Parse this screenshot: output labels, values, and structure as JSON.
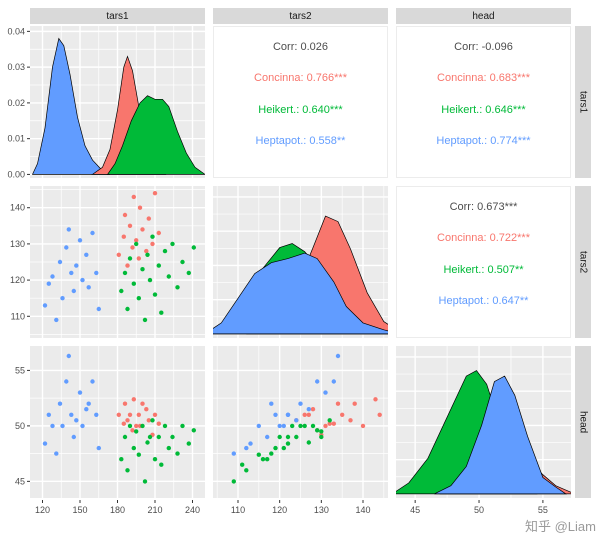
{
  "watermark": "知乎 @Liam",
  "strips": {
    "top": [
      "tars1",
      "tars2",
      "head"
    ],
    "right": [
      "tars1",
      "tars2",
      "head"
    ]
  },
  "colors": {
    "panel_bg": "#EBEBEB",
    "grid": "#FFFFFF",
    "strip_bg": "#D9D9D9",
    "tick_text": "#4D4D4D",
    "tick_mark": "#333333",
    "outline": "#000000"
  },
  "chart_data": {
    "type": "scatterplot-matrix",
    "title": "",
    "variables": [
      "tars1",
      "tars2",
      "head"
    ],
    "species": [
      {
        "name": "Concinna",
        "color": "#F8766D"
      },
      {
        "name": "Heikert.",
        "color": "#00BA38"
      },
      {
        "name": "Heptapot.",
        "color": "#619CFF"
      }
    ],
    "axes": {
      "tars1": {
        "lim": [
          110,
          250
        ],
        "major": [
          120,
          150,
          180,
          210,
          240
        ],
        "labels": [
          "120",
          "150",
          "180",
          "210",
          "240"
        ],
        "minor": [
          135,
          165,
          195,
          225
        ]
      },
      "tars2": {
        "lim": [
          104,
          146
        ],
        "major": [
          110,
          120,
          130,
          140
        ],
        "labels": [
          "110",
          "120",
          "130",
          "140"
        ],
        "minor": [
          105,
          115,
          125,
          135,
          145
        ]
      },
      "head": {
        "lim": [
          43.5,
          57.2
        ],
        "major": [
          45,
          50,
          55
        ],
        "labels": [
          "45",
          "50",
          "55"
        ],
        "minor": [
          47.5,
          52.5
        ]
      },
      "density": {
        "lim": [
          -0.001,
          0.0415
        ],
        "major": [
          0,
          0.01,
          0.02,
          0.03,
          0.04
        ],
        "labels": [
          "0.00",
          "0.01",
          "0.02",
          "0.03",
          "0.04"
        ],
        "minor": [
          0.005,
          0.015,
          0.025,
          0.035
        ]
      },
      "norm": {
        "lim": [
          -0.03,
          1.08
        ],
        "major": [
          0,
          0.25,
          0.5,
          0.75,
          1
        ],
        "labels": [],
        "minor": [
          0.125,
          0.375,
          0.625,
          0.875
        ]
      }
    },
    "corr": {
      "r1c2": [
        {
          "text": "Corr: 0.026",
          "color": "#4D4D4D"
        },
        {
          "text": "Concinna: 0.766***",
          "color": "#F8766D"
        },
        {
          "text": "Heikert.: 0.640***",
          "color": "#00BA38"
        },
        {
          "text": "Heptapot.: 0.558**",
          "color": "#619CFF"
        }
      ],
      "r1c3": [
        {
          "text": "Corr: -0.096",
          "color": "#4D4D4D"
        },
        {
          "text": "Concinna: 0.683***",
          "color": "#F8766D"
        },
        {
          "text": "Heikert.: 0.646***",
          "color": "#00BA38"
        },
        {
          "text": "Heptapot.: 0.774***",
          "color": "#619CFF"
        }
      ],
      "r2c3": [
        {
          "text": "Corr: 0.673***",
          "color": "#4D4D4D"
        },
        {
          "text": "Concinna: 0.722***",
          "color": "#F8766D"
        },
        {
          "text": "Heikert.: 0.507**",
          "color": "#00BA38"
        },
        {
          "text": "Heptapot.: 0.647**",
          "color": "#619CFF"
        }
      ]
    },
    "points": {
      "Concinna": [
        [
          181,
          127,
          51
        ],
        [
          185,
          132,
          50.2
        ],
        [
          186,
          138,
          52
        ],
        [
          188,
          124,
          50.5
        ],
        [
          190,
          135,
          51
        ],
        [
          192,
          129,
          49.6
        ],
        [
          193,
          143,
          52.4
        ],
        [
          195,
          131,
          50
        ],
        [
          197,
          126,
          51
        ],
        [
          198,
          140,
          50
        ],
        [
          200,
          134,
          52
        ],
        [
          203,
          128,
          51.5
        ],
        [
          205,
          137,
          50.5
        ],
        [
          208,
          130,
          49.2
        ],
        [
          210,
          144,
          51
        ],
        [
          213,
          133,
          50.2
        ]
      ],
      "Heikert.": [
        [
          183,
          117,
          47
        ],
        [
          186,
          122,
          49
        ],
        [
          188,
          112,
          46
        ],
        [
          190,
          126,
          50
        ],
        [
          193,
          119,
          48
        ],
        [
          195,
          130,
          49.5
        ],
        [
          197,
          115,
          47.4
        ],
        [
          200,
          123,
          50
        ],
        [
          202,
          109,
          45
        ],
        [
          204,
          127,
          48.5
        ],
        [
          206,
          120,
          49
        ],
        [
          208,
          132,
          50.5
        ],
        [
          210,
          116,
          47
        ],
        [
          213,
          124,
          49
        ],
        [
          215,
          111,
          46.5
        ],
        [
          218,
          128,
          50
        ],
        [
          221,
          121,
          48
        ],
        [
          224,
          130,
          49
        ],
        [
          228,
          118,
          47.5
        ],
        [
          232,
          125,
          50
        ],
        [
          237,
          122,
          48.4
        ],
        [
          241,
          129,
          49.6
        ]
      ],
      "Heptapot.": [
        [
          122,
          113,
          48.4
        ],
        [
          125,
          119,
          51
        ],
        [
          128,
          121,
          50
        ],
        [
          131,
          109,
          47.5
        ],
        [
          134,
          125,
          52
        ],
        [
          136,
          115,
          50
        ],
        [
          139,
          129,
          54
        ],
        [
          141,
          134,
          56.3
        ],
        [
          143,
          122,
          51
        ],
        [
          145,
          117,
          49
        ],
        [
          147,
          124,
          50.5
        ],
        [
          150,
          131,
          53
        ],
        [
          152,
          120,
          50
        ],
        [
          155,
          127,
          51.5
        ],
        [
          157,
          118,
          52
        ],
        [
          160,
          133,
          54
        ],
        [
          163,
          122,
          51
        ],
        [
          165,
          112,
          48
        ]
      ]
    },
    "densities": {
      "tars1": {
        "series": [
          {
            "species": "Heptapot.",
            "xy": [
              [
                112,
                0
              ],
              [
                116,
                0.003
              ],
              [
                122,
                0.013
              ],
              [
                128,
                0.03
              ],
              [
                133,
                0.038
              ],
              [
                137,
                0.036
              ],
              [
                142,
                0.028
              ],
              [
                148,
                0.016
              ],
              [
                154,
                0.008
              ],
              [
                160,
                0.004
              ],
              [
                168,
                0.001
              ],
              [
                174,
                0
              ]
            ]
          },
          {
            "species": "Concinna",
            "xy": [
              [
                160,
                0
              ],
              [
                168,
                0.002
              ],
              [
                174,
                0.007
              ],
              [
                180,
                0.018
              ],
              [
                185,
                0.03
              ],
              [
                188,
                0.033
              ],
              [
                192,
                0.029
              ],
              [
                197,
                0.019
              ],
              [
                202,
                0.009
              ],
              [
                208,
                0.003
              ],
              [
                213,
                0.001
              ],
              [
                218,
                0
              ]
            ]
          },
          {
            "species": "Heikert.",
            "xy": [
              [
                172,
                0
              ],
              [
                178,
                0.003
              ],
              [
                184,
                0.008
              ],
              [
                191,
                0.015
              ],
              [
                198,
                0.02
              ],
              [
                204,
                0.022
              ],
              [
                210,
                0.021
              ],
              [
                216,
                0.021
              ],
              [
                221,
                0.019
              ],
              [
                228,
                0.012
              ],
              [
                235,
                0.006
              ],
              [
                242,
                0.002
              ],
              [
                250,
                0
              ]
            ]
          }
        ]
      },
      "tars2": {
        "series": [
          {
            "species": "Heikert.",
            "xy": [
              [
                104,
                0
              ],
              [
                108,
                0.1
              ],
              [
                112,
                0.28
              ],
              [
                116,
                0.48
              ],
              [
                120,
                0.63
              ],
              [
                123,
                0.66
              ],
              [
                126,
                0.6
              ],
              [
                130,
                0.46
              ],
              [
                134,
                0.28
              ],
              [
                138,
                0.12
              ],
              [
                142,
                0.03
              ],
              [
                146,
                0
              ]
            ]
          },
          {
            "species": "Concinna",
            "xy": [
              [
                112,
                0
              ],
              [
                116,
                0.04
              ],
              [
                120,
                0.13
              ],
              [
                124,
                0.33
              ],
              [
                128,
                0.63
              ],
              [
                131,
                0.86
              ],
              [
                134,
                0.82
              ],
              [
                137,
                0.62
              ],
              [
                141,
                0.3
              ],
              [
                145,
                0.09
              ],
              [
                149,
                0.01
              ],
              [
                151,
                0
              ]
            ]
          },
          {
            "species": "Heptapot.",
            "xy": [
              [
                102,
                0
              ],
              [
                106,
                0.08
              ],
              [
                110,
                0.26
              ],
              [
                114,
                0.44
              ],
              [
                118,
                0.52
              ],
              [
                122,
                0.55
              ],
              [
                126,
                0.59
              ],
              [
                129,
                0.55
              ],
              [
                133,
                0.38
              ],
              [
                136,
                0.2
              ],
              [
                140,
                0.08
              ],
              [
                145,
                0.03
              ],
              [
                149,
                0
              ]
            ]
          }
        ]
      },
      "head": {
        "series": [
          {
            "species": "Concinna",
            "xy": [
              [
                47,
                0
              ],
              [
                48.5,
                0.1
              ],
              [
                50,
                0.32
              ],
              [
                51,
                0.46
              ],
              [
                52,
                0.5
              ],
              [
                53,
                0.4
              ],
              [
                54,
                0.24
              ],
              [
                55,
                0.14
              ],
              [
                56,
                0.06
              ],
              [
                57,
                0.02
              ],
              [
                57.5,
                0
              ]
            ]
          },
          {
            "species": "Heikert.",
            "xy": [
              [
                43.2,
                0
              ],
              [
                44.5,
                0.08
              ],
              [
                46,
                0.26
              ],
              [
                47.5,
                0.56
              ],
              [
                49,
                0.86
              ],
              [
                49.8,
                0.9
              ],
              [
                50.6,
                0.8
              ],
              [
                51.5,
                0.54
              ],
              [
                52.5,
                0.24
              ],
              [
                53.5,
                0.07
              ],
              [
                54.5,
                0
              ]
            ]
          },
          {
            "species": "Heptapot.",
            "xy": [
              [
                46.5,
                0
              ],
              [
                47.8,
                0.06
              ],
              [
                49,
                0.2
              ],
              [
                50.2,
                0.5
              ],
              [
                51.2,
                0.82
              ],
              [
                52,
                0.86
              ],
              [
                52.8,
                0.72
              ],
              [
                53.8,
                0.42
              ],
              [
                55,
                0.12
              ],
              [
                56,
                0.05
              ],
              [
                56.8,
                0
              ]
            ]
          }
        ]
      }
    },
    "panels": [
      {
        "id": "p11",
        "type": "density",
        "var": "tars1",
        "x_axis": "tars1",
        "y_axis": "density"
      },
      {
        "id": "p12",
        "type": "corr",
        "corr": "r1c2"
      },
      {
        "id": "p13",
        "type": "corr",
        "corr": "r1c3"
      },
      {
        "id": "p21",
        "type": "scatter",
        "x_var": "tars1",
        "y_var": "tars2",
        "x_axis": "tars1",
        "y_axis": "tars2"
      },
      {
        "id": "p22",
        "type": "density",
        "var": "tars2",
        "x_axis": "tars2",
        "y_axis": "norm"
      },
      {
        "id": "p23",
        "type": "corr",
        "corr": "r2c3"
      },
      {
        "id": "p31",
        "type": "scatter",
        "x_var": "tars1",
        "y_var": "head",
        "x_axis": "tars1",
        "y_axis": "head"
      },
      {
        "id": "p32",
        "type": "scatter",
        "x_var": "tars2",
        "y_var": "head",
        "x_axis": "tars2",
        "y_axis": "head"
      },
      {
        "id": "p33",
        "type": "density",
        "var": "head",
        "x_axis": "head",
        "y_axis": "norm"
      }
    ],
    "axis_cells": [
      {
        "id": "yaxis-r1",
        "axis": "density",
        "orient": "y"
      },
      {
        "id": "yaxis-r2",
        "axis": "tars2",
        "orient": "y"
      },
      {
        "id": "yaxis-r3",
        "axis": "head",
        "orient": "y"
      },
      {
        "id": "xaxis-c1",
        "axis": "tars1",
        "orient": "x"
      },
      {
        "id": "xaxis-c2",
        "axis": "tars2",
        "orient": "x"
      },
      {
        "id": "xaxis-c3",
        "axis": "head",
        "orient": "x"
      }
    ]
  }
}
